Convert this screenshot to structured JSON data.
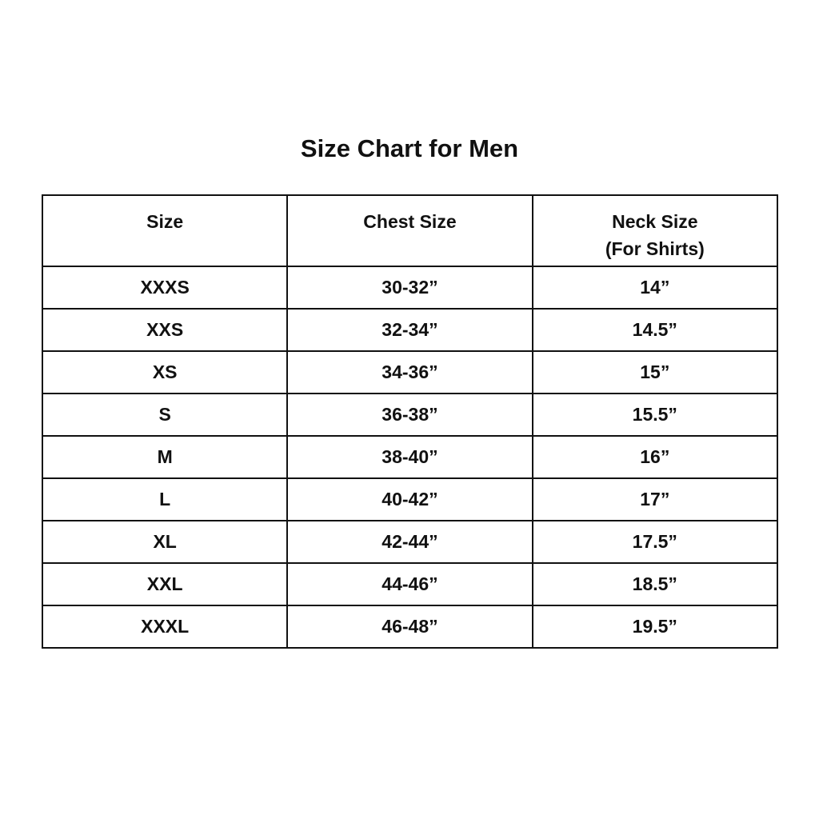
{
  "title": "Size Chart for Men",
  "headers": [
    "Size",
    "Chest Size",
    "Neck Size",
    "(For Shirts)"
  ],
  "rows": [
    [
      "XXXS",
      "30-32”",
      "14”"
    ],
    [
      "XXS",
      "32-34”",
      "14.5”"
    ],
    [
      "XS",
      "34-36”",
      "15”"
    ],
    [
      "S",
      "36-38”",
      "15.5”"
    ],
    [
      "M",
      "38-40”",
      "16”"
    ],
    [
      "L",
      "40-42”",
      "17”"
    ],
    [
      "XL",
      "42-44”",
      "17.5”"
    ],
    [
      "XXL",
      "44-46”",
      "18.5”"
    ],
    [
      "XXXL",
      "46-48”",
      "19.5”"
    ]
  ]
}
